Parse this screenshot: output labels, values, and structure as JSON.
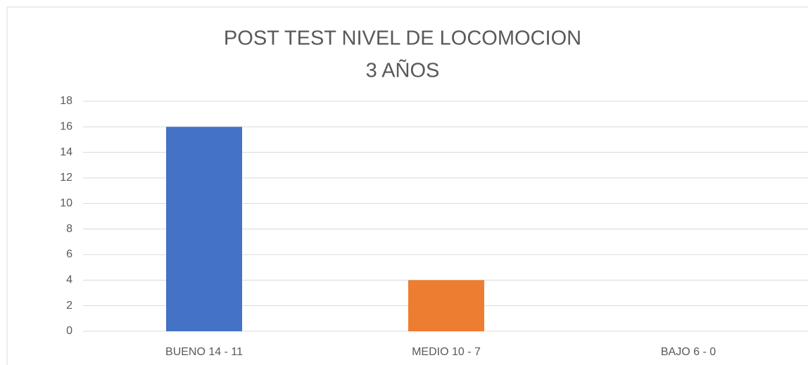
{
  "chart_data": {
    "type": "bar",
    "title": "POST TEST NIVEL DE LOCOMOCION",
    "subtitle": "3 AÑOS",
    "categories": [
      "BUENO 14 - 11",
      "MEDIO 10 - 7",
      "BAJO 6 - 0"
    ],
    "values": [
      16,
      4,
      0
    ],
    "colors": [
      "#4472c4",
      "#ed7d31",
      "#a5a5a5"
    ],
    "ylim": [
      0,
      18
    ],
    "yticks": [
      0,
      2,
      4,
      6,
      8,
      10,
      12,
      14,
      16,
      18
    ],
    "grid": true
  }
}
